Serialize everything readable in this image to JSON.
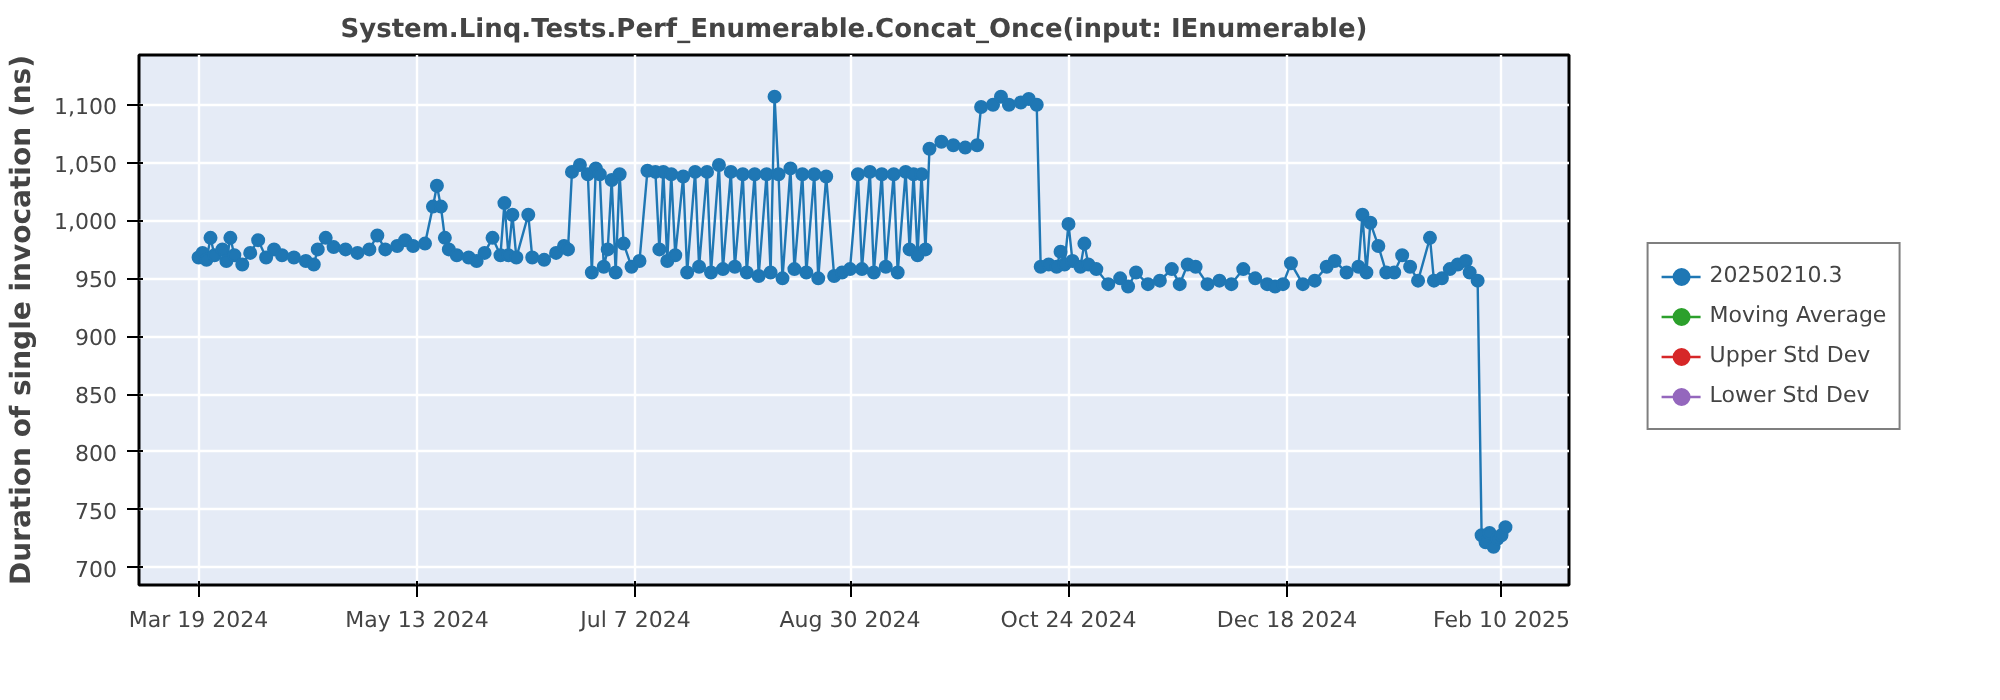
{
  "chart_data": {
    "type": "line",
    "title": "System.Linq.Tests.Perf_Enumerable.Concat_Once(input: IEnumerable)",
    "ylabel": "Duration of single invocation (ns)",
    "xlim": [
      "2024-03-04",
      "2025-02-27"
    ],
    "xticks": [
      {
        "value": "2024-03-19",
        "label": "Mar 19 2024"
      },
      {
        "value": "2024-05-13",
        "label": "May 13 2024"
      },
      {
        "value": "2024-07-07",
        "label": "Jul 7 2024"
      },
      {
        "value": "2024-08-30",
        "label": "Aug 30 2024"
      },
      {
        "value": "2024-10-24",
        "label": "Oct 24 2024"
      },
      {
        "value": "2024-12-18",
        "label": "Dec 18 2024"
      },
      {
        "value": "2025-02-10",
        "label": "Feb 10 2025"
      }
    ],
    "ylim": [
      685,
      1143
    ],
    "yticks": [
      700,
      750,
      800,
      850,
      900,
      950,
      {
        "value": 1000,
        "label": "1,000"
      },
      {
        "value": 1050,
        "label": "1,050"
      },
      {
        "value": 1100,
        "label": "1,100"
      }
    ],
    "grid": true,
    "legend": "right",
    "marker": "circle",
    "line_style": "solid",
    "series": [
      {
        "name": "20250210.3",
        "color": "#1f77b4",
        "x": [
          "2024-03-19",
          "2024-03-20",
          "2024-03-21",
          "2024-03-22",
          "2024-03-23",
          "2024-03-25",
          "2024-03-26",
          "2024-03-27",
          "2024-03-28",
          "2024-03-30",
          "2024-04-01",
          "2024-04-03",
          "2024-04-05",
          "2024-04-07",
          "2024-04-09",
          "2024-04-12",
          "2024-04-15",
          "2024-04-17",
          "2024-04-18",
          "2024-04-20",
          "2024-04-22",
          "2024-04-25",
          "2024-04-28",
          "2024-05-01",
          "2024-05-03",
          "2024-05-05",
          "2024-05-08",
          "2024-05-10",
          "2024-05-12",
          "2024-05-15",
          "2024-05-17",
          "2024-05-18",
          "2024-05-19",
          "2024-05-20",
          "2024-05-21",
          "2024-05-23",
          "2024-05-26",
          "2024-05-28",
          "2024-05-30",
          "2024-06-01",
          "2024-06-03",
          "2024-06-04",
          "2024-06-05",
          "2024-06-06",
          "2024-06-07",
          "2024-06-10",
          "2024-06-11",
          "2024-06-14",
          "2024-06-17",
          "2024-06-19",
          "2024-06-20",
          "2024-06-21",
          "2024-06-23",
          "2024-06-25",
          "2024-06-26",
          "2024-06-27",
          "2024-06-28",
          "2024-06-29",
          "2024-06-30",
          "2024-07-01",
          "2024-07-02",
          "2024-07-03",
          "2024-07-04",
          "2024-07-06",
          "2024-07-08",
          "2024-07-10",
          "2024-07-12",
          "2024-07-13",
          "2024-07-14",
          "2024-07-15",
          "2024-07-16",
          "2024-07-17",
          "2024-07-19",
          "2024-07-20",
          "2024-07-22",
          "2024-07-23",
          "2024-07-25",
          "2024-07-26",
          "2024-07-28",
          "2024-07-29",
          "2024-07-31",
          "2024-08-01",
          "2024-08-03",
          "2024-08-04",
          "2024-08-06",
          "2024-08-07",
          "2024-08-09",
          "2024-08-10",
          "2024-08-11",
          "2024-08-12",
          "2024-08-13",
          "2024-08-15",
          "2024-08-16",
          "2024-08-18",
          "2024-08-19",
          "2024-08-21",
          "2024-08-22",
          "2024-08-24",
          "2024-08-26",
          "2024-08-28",
          "2024-08-30",
          "2024-09-01",
          "2024-09-02",
          "2024-09-04",
          "2024-09-05",
          "2024-09-07",
          "2024-09-08",
          "2024-09-10",
          "2024-09-11",
          "2024-09-13",
          "2024-09-14",
          "2024-09-15",
          "2024-09-16",
          "2024-09-17",
          "2024-09-18",
          "2024-09-19",
          "2024-09-22",
          "2024-09-25",
          "2024-09-28",
          "2024-10-01",
          "2024-10-02",
          "2024-10-05",
          "2024-10-07",
          "2024-10-09",
          "2024-10-12",
          "2024-10-14",
          "2024-10-16",
          "2024-10-17",
          "2024-10-19",
          "2024-10-21",
          "2024-10-22",
          "2024-10-23",
          "2024-10-24",
          "2024-10-25",
          "2024-10-27",
          "2024-10-28",
          "2024-10-29",
          "2024-10-31",
          "2024-11-03",
          "2024-11-06",
          "2024-11-08",
          "2024-11-10",
          "2024-11-13",
          "2024-11-16",
          "2024-11-19",
          "2024-11-21",
          "2024-11-23",
          "2024-11-25",
          "2024-11-28",
          "2024-12-01",
          "2024-12-04",
          "2024-12-07",
          "2024-12-10",
          "2024-12-13",
          "2024-12-15",
          "2024-12-17",
          "2024-12-19",
          "2024-12-22",
          "2024-12-25",
          "2024-12-28",
          "2024-12-30",
          "2025-01-02",
          "2025-01-05",
          "2025-01-06",
          "2025-01-07",
          "2025-01-08",
          "2025-01-10",
          "2025-01-12",
          "2025-01-14",
          "2025-01-16",
          "2025-01-18",
          "2025-01-20",
          "2025-01-23",
          "2025-01-24",
          "2025-01-26",
          "2025-01-28",
          "2025-01-30",
          "2025-02-01",
          "2025-02-02",
          "2025-02-04",
          "2025-02-05",
          "2025-02-06",
          "2025-02-07",
          "2025-02-08",
          "2025-02-09",
          "2025-02-10",
          "2025-02-11"
        ],
        "values": [
          968,
          972,
          966,
          985,
          970,
          975,
          965,
          985,
          970,
          962,
          972,
          983,
          968,
          975,
          970,
          968,
          965,
          962,
          975,
          985,
          977,
          975,
          972,
          975,
          987,
          975,
          978,
          983,
          978,
          980,
          1012,
          1030,
          1012,
          985,
          975,
          970,
          968,
          965,
          972,
          985,
          970,
          1015,
          970,
          1005,
          968,
          1005,
          968,
          966,
          972,
          978,
          975,
          1042,
          1048,
          1040,
          955,
          1045,
          1040,
          960,
          975,
          1035,
          955,
          1040,
          980,
          960,
          965,
          1043,
          1042,
          975,
          1042,
          965,
          1040,
          970,
          1038,
          955,
          1042,
          960,
          1042,
          955,
          1048,
          958,
          1042,
          960,
          1040,
          955,
          1040,
          952,
          1040,
          955,
          1107,
          1040,
          950,
          1045,
          958,
          1040,
          955,
          1040,
          950,
          1038,
          952,
          955,
          958,
          1040,
          958,
          1042,
          955,
          1040,
          960,
          1040,
          955,
          1042,
          975,
          1040,
          970,
          1040,
          975,
          1062,
          1068,
          1065,
          1063,
          1065,
          1098,
          1100,
          1107,
          1100,
          1102,
          1105,
          1100,
          960,
          962,
          960,
          973,
          962,
          997,
          965,
          960,
          980,
          962,
          958,
          945,
          950,
          943,
          955,
          945,
          948,
          958,
          945,
          962,
          960,
          945,
          948,
          945,
          958,
          950,
          945,
          943,
          945,
          963,
          945,
          948,
          960,
          965,
          955,
          960,
          1005,
          955,
          998,
          978,
          955,
          955,
          970,
          960,
          948,
          985,
          948,
          950,
          958,
          962,
          965,
          955,
          948,
          728,
          722,
          730,
          718,
          725,
          728,
          735
        ]
      },
      {
        "name": "Moving Average",
        "color": "#2ca02c"
      },
      {
        "name": "Upper Std Dev",
        "color": "#d62728"
      },
      {
        "name": "Lower Std Dev",
        "color": "#9467bd"
      }
    ]
  }
}
